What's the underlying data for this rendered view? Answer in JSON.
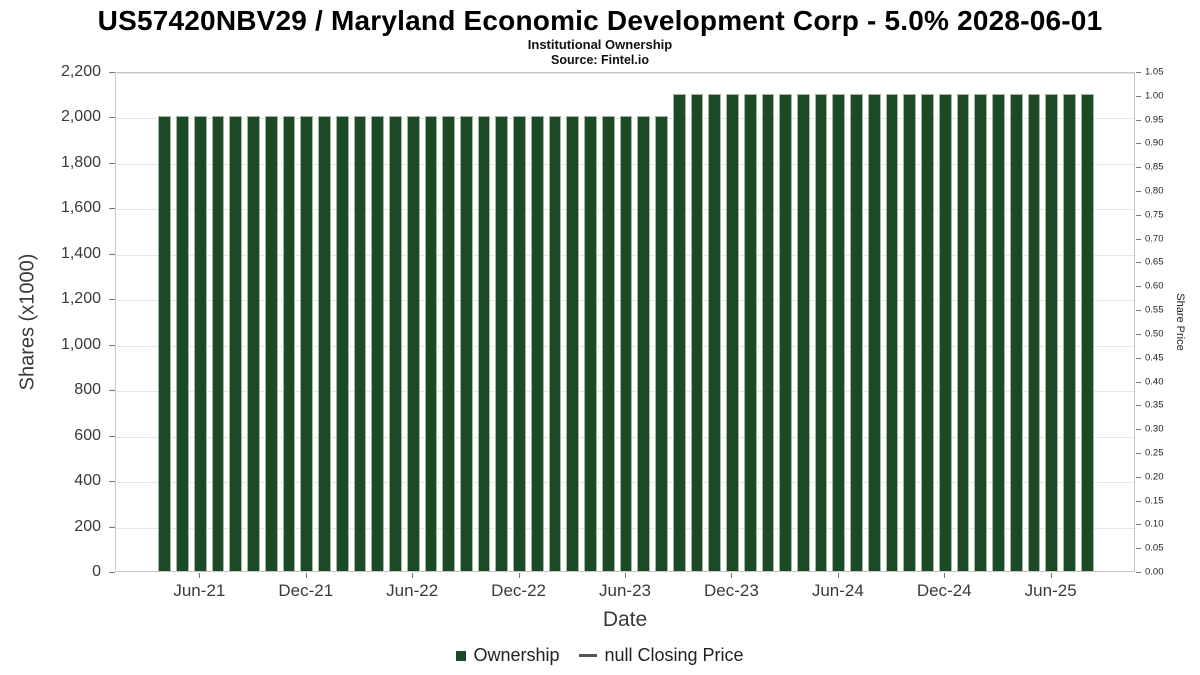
{
  "chart_data": {
    "type": "bar",
    "title": "US57420NBV29 / Maryland Economic Development Corp - 5.0% 2028-06-01",
    "subtitle": "Institutional Ownership",
    "source": "Source: Fintel.io",
    "xlabel": "Date",
    "ylabel": "Shares (x1000)",
    "ylabel_right": "Share Price",
    "grid": "horizontal",
    "legend_position": "bottom",
    "x": [
      "2021-04",
      "2021-05",
      "2021-06",
      "2021-07",
      "2021-08",
      "2021-09",
      "2021-10",
      "2021-11",
      "2021-12",
      "2022-01",
      "2022-02",
      "2022-03",
      "2022-04",
      "2022-05",
      "2022-06",
      "2022-07",
      "2022-08",
      "2022-09",
      "2022-10",
      "2022-11",
      "2022-12",
      "2023-01",
      "2023-02",
      "2023-03",
      "2023-04",
      "2023-05",
      "2023-06",
      "2023-07",
      "2023-08",
      "2023-09",
      "2023-10",
      "2023-11",
      "2023-12",
      "2024-01",
      "2024-02",
      "2024-03",
      "2024-04",
      "2024-05",
      "2024-06",
      "2024-07",
      "2024-08",
      "2024-09",
      "2024-10",
      "2024-11",
      "2024-12",
      "2025-01",
      "2025-02",
      "2025-03",
      "2025-04",
      "2025-05",
      "2025-06",
      "2025-07",
      "2025-08"
    ],
    "series": [
      {
        "name": "Ownership",
        "color": "#1d4a26",
        "values": [
          2000,
          2000,
          2000,
          2000,
          2000,
          2000,
          2000,
          2000,
          2000,
          2000,
          2000,
          2000,
          2000,
          2000,
          2000,
          2000,
          2000,
          2000,
          2000,
          2000,
          2000,
          2000,
          2000,
          2000,
          2000,
          2000,
          2000,
          2000,
          2000,
          2100,
          2100,
          2100,
          2100,
          2100,
          2100,
          2100,
          2100,
          2100,
          2100,
          2100,
          2100,
          2100,
          2100,
          2100,
          2100,
          2100,
          2100,
          2100,
          2100,
          2100,
          2100,
          2100,
          2100
        ]
      },
      {
        "name": "null Closing Price",
        "color": "#555555",
        "values": []
      }
    ],
    "x_tick_labels": [
      "Jun-21",
      "Dec-21",
      "Jun-22",
      "Dec-22",
      "Jun-23",
      "Dec-23",
      "Jun-24",
      "Dec-24",
      "Jun-25"
    ],
    "x_tick_indices": [
      2,
      8,
      14,
      20,
      26,
      32,
      38,
      44,
      50
    ],
    "left_axis": {
      "min": 0,
      "max": 2200,
      "step": 200
    },
    "right_axis": {
      "min": 0.0,
      "max": 1.05,
      "step": 0.05
    }
  },
  "legend": [
    {
      "label": "Ownership",
      "marker": "square",
      "color": "#1d4a26"
    },
    {
      "label": "null Closing Price",
      "marker": "line",
      "color": "#555555"
    }
  ]
}
